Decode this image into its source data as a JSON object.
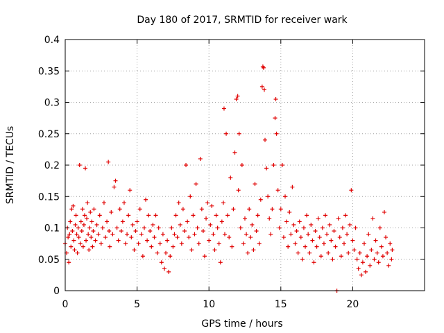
{
  "chart_data": {
    "type": "scatter",
    "title": "Day 180 of 2017, SRMTID for receiver wark",
    "xlabel": "GPS time / hours",
    "ylabel": "SRMTID / TECUs",
    "xlim": [
      0,
      25
    ],
    "ylim": [
      0,
      0.4
    ],
    "xticks": [
      0,
      5,
      10,
      15,
      20
    ],
    "xtick_labels": [
      "0",
      "5",
      "10",
      "15",
      "20"
    ],
    "yticks": [
      0,
      0.05,
      0.1,
      0.15,
      0.2,
      0.25,
      0.3,
      0.35,
      0.4
    ],
    "ytick_labels": [
      "0",
      "0.05",
      "0.1",
      "0.15",
      "0.2",
      "0.25",
      "0.3",
      "0.35",
      "0.4"
    ],
    "grid": true,
    "marker": "plus",
    "marker_color": "#e00000",
    "series": [
      {
        "name": "SRMTID",
        "color": "#e00000",
        "points": [
          [
            0.0,
            0.075
          ],
          [
            0.1,
            0.06
          ],
          [
            0.15,
            0.1
          ],
          [
            0.2,
            0.085
          ],
          [
            0.25,
            0.045
          ],
          [
            0.3,
            0.09
          ],
          [
            0.35,
            0.11
          ],
          [
            0.4,
            0.07
          ],
          [
            0.45,
            0.13
          ],
          [
            0.5,
            0.095
          ],
          [
            0.55,
            0.135
          ],
          [
            0.6,
            0.08
          ],
          [
            0.65,
            0.065
          ],
          [
            0.7,
            0.105
          ],
          [
            0.75,
            0.12
          ],
          [
            0.8,
            0.09
          ],
          [
            0.85,
            0.06
          ],
          [
            0.9,
            0.1
          ],
          [
            0.95,
            0.085
          ],
          [
            1.0,
            0.2
          ],
          [
            1.05,
            0.075
          ],
          [
            1.1,
            0.11
          ],
          [
            1.15,
            0.095
          ],
          [
            1.2,
            0.13
          ],
          [
            1.25,
            0.07
          ],
          [
            1.3,
            0.105
          ],
          [
            1.35,
            0.12
          ],
          [
            1.4,
            0.195
          ],
          [
            1.45,
            0.08
          ],
          [
            1.5,
            0.115
          ],
          [
            1.55,
            0.14
          ],
          [
            1.6,
            0.09
          ],
          [
            1.65,
            0.065
          ],
          [
            1.7,
            0.1
          ],
          [
            1.75,
            0.125
          ],
          [
            1.8,
            0.085
          ],
          [
            1.85,
            0.11
          ],
          [
            1.9,
            0.07
          ],
          [
            1.95,
            0.095
          ],
          [
            2.0,
            0.13
          ],
          [
            2.1,
            0.08
          ],
          [
            2.2,
            0.105
          ],
          [
            2.3,
            0.09
          ],
          [
            2.4,
            0.12
          ],
          [
            2.5,
            0.075
          ],
          [
            2.6,
            0.1
          ],
          [
            2.7,
            0.14
          ],
          [
            2.8,
            0.085
          ],
          [
            2.9,
            0.11
          ],
          [
            3.0,
            0.205
          ],
          [
            3.05,
            0.095
          ],
          [
            3.1,
            0.07
          ],
          [
            3.2,
            0.125
          ],
          [
            3.3,
            0.09
          ],
          [
            3.4,
            0.165
          ],
          [
            3.5,
            0.175
          ],
          [
            3.6,
            0.1
          ],
          [
            3.7,
            0.08
          ],
          [
            3.8,
            0.13
          ],
          [
            3.9,
            0.095
          ],
          [
            4.0,
            0.11
          ],
          [
            4.1,
            0.14
          ],
          [
            4.2,
            0.075
          ],
          [
            4.3,
            0.09
          ],
          [
            4.4,
            0.12
          ],
          [
            4.5,
            0.16
          ],
          [
            4.6,
            0.085
          ],
          [
            4.7,
            0.105
          ],
          [
            4.8,
            0.065
          ],
          [
            4.9,
            0.095
          ],
          [
            5.0,
            0.11
          ],
          [
            5.1,
            0.075
          ],
          [
            5.2,
            0.13
          ],
          [
            5.3,
            0.09
          ],
          [
            5.4,
            0.055
          ],
          [
            5.5,
            0.1
          ],
          [
            5.6,
            0.145
          ],
          [
            5.7,
            0.08
          ],
          [
            5.8,
            0.12
          ],
          [
            5.9,
            0.095
          ],
          [
            6.0,
            0.07
          ],
          [
            6.1,
            0.105
          ],
          [
            6.2,
            0.085
          ],
          [
            6.3,
            0.12
          ],
          [
            6.4,
            0.06
          ],
          [
            6.5,
            0.1
          ],
          [
            6.6,
            0.075
          ],
          [
            6.7,
            0.045
          ],
          [
            6.8,
            0.09
          ],
          [
            6.9,
            0.035
          ],
          [
            7.0,
            0.06
          ],
          [
            7.1,
            0.08
          ],
          [
            7.2,
            0.03
          ],
          [
            7.3,
            0.055
          ],
          [
            7.4,
            0.1
          ],
          [
            7.5,
            0.07
          ],
          [
            7.6,
            0.09
          ],
          [
            7.7,
            0.12
          ],
          [
            7.8,
            0.085
          ],
          [
            7.9,
            0.14
          ],
          [
            8.0,
            0.105
          ],
          [
            8.1,
            0.075
          ],
          [
            8.2,
            0.13
          ],
          [
            8.3,
            0.095
          ],
          [
            8.4,
            0.2
          ],
          [
            8.5,
            0.11
          ],
          [
            8.6,
            0.085
          ],
          [
            8.7,
            0.15
          ],
          [
            8.8,
            0.065
          ],
          [
            8.9,
            0.12
          ],
          [
            9.0,
            0.09
          ],
          [
            9.1,
            0.17
          ],
          [
            9.2,
            0.1
          ],
          [
            9.3,
            0.075
          ],
          [
            9.4,
            0.21
          ],
          [
            9.5,
            0.13
          ],
          [
            9.6,
            0.095
          ],
          [
            9.7,
            0.055
          ],
          [
            9.8,
            0.115
          ],
          [
            9.9,
            0.14
          ],
          [
            10.0,
            0.08
          ],
          [
            10.1,
            0.105
          ],
          [
            10.2,
            0.135
          ],
          [
            10.3,
            0.09
          ],
          [
            10.4,
            0.065
          ],
          [
            10.5,
            0.12
          ],
          [
            10.6,
            0.1
          ],
          [
            10.7,
            0.075
          ],
          [
            10.8,
            0.045
          ],
          [
            10.9,
            0.11
          ],
          [
            11.0,
            0.14
          ],
          [
            11.05,
            0.29
          ],
          [
            11.1,
            0.09
          ],
          [
            11.2,
            0.25
          ],
          [
            11.3,
            0.12
          ],
          [
            11.4,
            0.085
          ],
          [
            11.5,
            0.18
          ],
          [
            11.6,
            0.07
          ],
          [
            11.7,
            0.13
          ],
          [
            11.8,
            0.22
          ],
          [
            11.9,
            0.305
          ],
          [
            12.0,
            0.31
          ],
          [
            12.05,
            0.16
          ],
          [
            12.1,
            0.25
          ],
          [
            12.2,
            0.1
          ],
          [
            12.3,
            0.2
          ],
          [
            12.4,
            0.075
          ],
          [
            12.5,
            0.115
          ],
          [
            12.6,
            0.09
          ],
          [
            12.7,
            0.06
          ],
          [
            12.8,
            0.13
          ],
          [
            12.9,
            0.085
          ],
          [
            13.0,
            0.105
          ],
          [
            13.1,
            0.065
          ],
          [
            13.2,
            0.17
          ],
          [
            13.3,
            0.095
          ],
          [
            13.4,
            0.12
          ],
          [
            13.5,
            0.075
          ],
          [
            13.6,
            0.145
          ],
          [
            13.7,
            0.325
          ],
          [
            13.75,
            0.357
          ],
          [
            13.8,
            0.355
          ],
          [
            13.85,
            0.32
          ],
          [
            13.9,
            0.24
          ],
          [
            14.0,
            0.195
          ],
          [
            14.1,
            0.15
          ],
          [
            14.2,
            0.115
          ],
          [
            14.3,
            0.09
          ],
          [
            14.4,
            0.13
          ],
          [
            14.5,
            0.2
          ],
          [
            14.6,
            0.275
          ],
          [
            14.65,
            0.305
          ],
          [
            14.7,
            0.25
          ],
          [
            14.8,
            0.16
          ],
          [
            14.9,
            0.1
          ],
          [
            15.0,
            0.13
          ],
          [
            15.1,
            0.2
          ],
          [
            15.2,
            0.085
          ],
          [
            15.3,
            0.15
          ],
          [
            15.4,
            0.11
          ],
          [
            15.5,
            0.07
          ],
          [
            15.6,
            0.125
          ],
          [
            15.7,
            0.09
          ],
          [
            15.8,
            0.165
          ],
          [
            15.9,
            0.105
          ],
          [
            16.0,
            0.075
          ],
          [
            16.1,
            0.095
          ],
          [
            16.2,
            0.06
          ],
          [
            16.3,
            0.11
          ],
          [
            16.4,
            0.085
          ],
          [
            16.5,
            0.05
          ],
          [
            16.6,
            0.1
          ],
          [
            16.7,
            0.07
          ],
          [
            16.8,
            0.12
          ],
          [
            16.9,
            0.09
          ],
          [
            17.0,
            0.06
          ],
          [
            17.1,
            0.105
          ],
          [
            17.2,
            0.08
          ],
          [
            17.3,
            0.045
          ],
          [
            17.4,
            0.095
          ],
          [
            17.5,
            0.07
          ],
          [
            17.6,
            0.115
          ],
          [
            17.7,
            0.085
          ],
          [
            17.8,
            0.055
          ],
          [
            17.9,
            0.1
          ],
          [
            18.0,
            0.075
          ],
          [
            18.1,
            0.12
          ],
          [
            18.2,
            0.09
          ],
          [
            18.3,
            0.06
          ],
          [
            18.4,
            0.105
          ],
          [
            18.5,
            0.08
          ],
          [
            18.6,
            0.05
          ],
          [
            18.7,
            0.095
          ],
          [
            18.8,
            0.07
          ],
          [
            18.9,
            0.0
          ],
          [
            19.0,
            0.115
          ],
          [
            19.1,
            0.085
          ],
          [
            19.2,
            0.055
          ],
          [
            19.3,
            0.1
          ],
          [
            19.4,
            0.075
          ],
          [
            19.5,
            0.12
          ],
          [
            19.6,
            0.09
          ],
          [
            19.7,
            0.06
          ],
          [
            19.8,
            0.105
          ],
          [
            19.9,
            0.16
          ],
          [
            20.0,
            0.08
          ],
          [
            20.1,
            0.065
          ],
          [
            20.2,
            0.1
          ],
          [
            20.3,
            0.05
          ],
          [
            20.4,
            0.035
          ],
          [
            20.5,
            0.06
          ],
          [
            20.6,
            0.025
          ],
          [
            20.7,
            0.045
          ],
          [
            20.8,
            0.075
          ],
          [
            20.9,
            0.03
          ],
          [
            21.0,
            0.055
          ],
          [
            21.1,
            0.09
          ],
          [
            21.2,
            0.04
          ],
          [
            21.3,
            0.065
          ],
          [
            21.4,
            0.115
          ],
          [
            21.5,
            0.05
          ],
          [
            21.6,
            0.08
          ],
          [
            21.7,
            0.06
          ],
          [
            21.8,
            0.045
          ],
          [
            21.9,
            0.1
          ],
          [
            22.0,
            0.07
          ],
          [
            22.1,
            0.055
          ],
          [
            22.2,
            0.125
          ],
          [
            22.3,
            0.085
          ],
          [
            22.4,
            0.06
          ],
          [
            22.5,
            0.04
          ],
          [
            22.6,
            0.075
          ],
          [
            22.7,
            0.05
          ],
          [
            22.75,
            0.065
          ]
        ]
      }
    ]
  }
}
